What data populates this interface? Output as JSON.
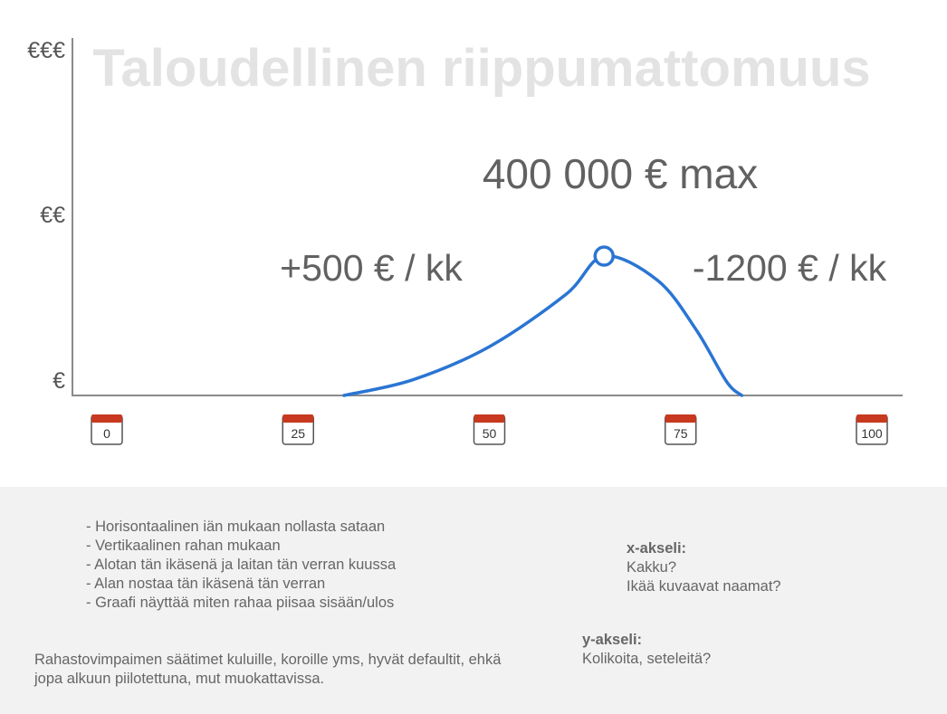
{
  "chart_data": {
    "type": "line",
    "title": "Taloudellinen riippumattomuus",
    "x_ticks": [
      "0",
      "25",
      "50",
      "75",
      "100"
    ],
    "xlim": [
      0,
      100
    ],
    "y_ticks": [
      "€€€",
      "€€",
      "€"
    ],
    "series": [
      {
        "points": [
          [
            31,
            0
          ],
          [
            40,
            45000
          ],
          [
            50,
            140000
          ],
          [
            60,
            290000
          ],
          [
            65,
            400000
          ],
          [
            72,
            330000
          ],
          [
            77,
            190000
          ],
          [
            81,
            40000
          ],
          [
            83,
            0
          ]
        ]
      }
    ],
    "peak": {
      "x": 65,
      "y": 400000
    },
    "annotations": {
      "max": "400 000 € max",
      "saving": "+500 € / kk",
      "spending": "-1200 € / kk"
    },
    "colors": {
      "line": "#2a75d3",
      "axis": "#8a8a8a",
      "calendar_top": "#c8391f"
    }
  },
  "notes": {
    "bullets": [
      "- Horisontaalinen iän mukaan nollasta sataan",
      "- Vertikaalinen rahan mukaan",
      "- Alotan tän ikäsenä ja laitan tän verran kuussa",
      "- Alan nostaa tän ikäsenä tän verran",
      "- Graafi näyttää miten rahaa piisaa sisään/ulos"
    ],
    "paragraph": "Rahastovimpaimen säätimet kuluille, koroille yms, hyvät defaultit, ehkä jopa alkuun piilotettuna, mut muokattavissa.",
    "x_axis": {
      "heading": "x-akseli:",
      "lines": [
        "Kakku?",
        "Ikää kuvaavat naamat?"
      ]
    },
    "y_axis": {
      "heading": "y-akseli:",
      "lines": [
        "Kolikoita, seteleitä?"
      ]
    }
  }
}
